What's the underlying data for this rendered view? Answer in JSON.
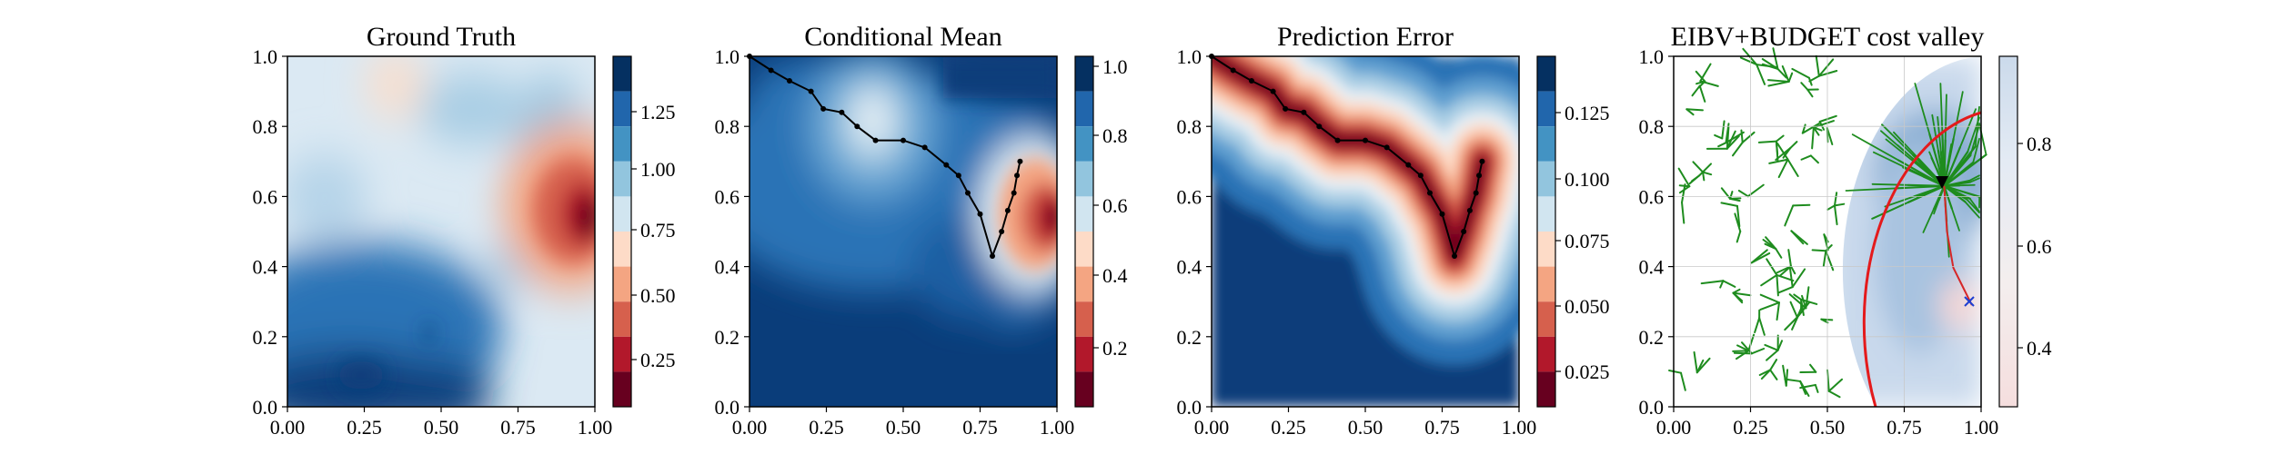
{
  "chart_data": [
    {
      "type": "heatmap",
      "title": "Ground Truth",
      "xlim": [
        0,
        1
      ],
      "ylim": [
        0,
        1
      ],
      "x_ticks": [
        "0.00",
        "0.25",
        "0.50",
        "0.75",
        "1.00"
      ],
      "y_ticks": [
        "0.0",
        "0.2",
        "0.4",
        "0.6",
        "0.8",
        "1.0"
      ],
      "colormap": "RdBu (reversed: red=low, blue=high)",
      "colorbar_range": [
        0.1,
        1.45
      ],
      "colorbar_ticks": [
        "0.25",
        "0.50",
        "0.75",
        "1.00",
        "1.25"
      ],
      "field_features": {
        "low_values_hotspot": {
          "x": 0.95,
          "y": 0.55,
          "value": 0.1
        },
        "mild_low_region": {
          "x": 0.35,
          "y": 0.9,
          "value": 0.7
        },
        "high_values_regions": [
          {
            "x": 0.2,
            "y": 0.05,
            "value": 1.4
          },
          {
            "x": 0.45,
            "y": 0.05,
            "value": 1.4
          }
        ]
      }
    },
    {
      "type": "heatmap",
      "title": "Conditional Mean",
      "xlim": [
        0,
        1
      ],
      "ylim": [
        0,
        1
      ],
      "x_ticks": [
        "0.00",
        "0.25",
        "0.50",
        "0.75",
        "1.00"
      ],
      "y_ticks": [
        "0.0",
        "0.2",
        "0.4",
        "0.6",
        "0.8",
        "1.0"
      ],
      "colormap": "RdBu (reversed)",
      "colorbar_range": [
        0.05,
        1.05
      ],
      "colorbar_ticks": [
        "0.2",
        "0.4",
        "0.6",
        "0.8",
        "1.0"
      ],
      "field_features": {
        "low_values_hotspot": {
          "x": 0.97,
          "y": 0.55,
          "value": 0.08
        },
        "light_blob": {
          "x": 0.4,
          "y": 0.82,
          "value": 0.6
        }
      },
      "path": {
        "x": [
          0.0,
          0.07,
          0.13,
          0.2,
          0.24,
          0.3,
          0.35,
          0.41,
          0.5,
          0.57,
          0.64,
          0.68,
          0.71,
          0.75,
          0.79,
          0.82,
          0.84,
          0.86,
          0.87,
          0.88
        ],
        "y": [
          1.0,
          0.96,
          0.93,
          0.9,
          0.85,
          0.84,
          0.8,
          0.76,
          0.76,
          0.74,
          0.69,
          0.66,
          0.61,
          0.55,
          0.43,
          0.5,
          0.56,
          0.61,
          0.66,
          0.7
        ]
      }
    },
    {
      "type": "heatmap",
      "title": "Prediction Error",
      "xlim": [
        0,
        1
      ],
      "ylim": [
        0,
        1
      ],
      "x_ticks": [
        "0.00",
        "0.25",
        "0.50",
        "0.75",
        "1.00"
      ],
      "y_ticks": [
        "0.0",
        "0.2",
        "0.4",
        "0.6",
        "0.8",
        "1.0"
      ],
      "colormap": "RdBu (reversed)",
      "colorbar_range": [
        0.012,
        0.148
      ],
      "colorbar_ticks": [
        "0.025",
        "0.050",
        "0.075",
        "0.100",
        "0.125"
      ],
      "note": "Error is lowest along the sampled path and increases away from it.",
      "path": {
        "x": [
          0.0,
          0.07,
          0.13,
          0.2,
          0.24,
          0.3,
          0.35,
          0.41,
          0.5,
          0.57,
          0.64,
          0.68,
          0.71,
          0.75,
          0.79,
          0.82,
          0.84,
          0.86,
          0.87,
          0.88
        ],
        "y": [
          1.0,
          0.96,
          0.93,
          0.9,
          0.85,
          0.84,
          0.8,
          0.76,
          0.76,
          0.74,
          0.69,
          0.66,
          0.61,
          0.55,
          0.43,
          0.5,
          0.56,
          0.61,
          0.66,
          0.7
        ]
      }
    },
    {
      "type": "heatmap",
      "title": "EIBV+BUDGET cost valley",
      "xlim": [
        0,
        1
      ],
      "ylim": [
        0,
        1
      ],
      "x_ticks": [
        "0.00",
        "0.25",
        "0.50",
        "0.75",
        "1.00"
      ],
      "y_ticks": [
        "0.0",
        "0.2",
        "0.4",
        "0.6",
        "0.8",
        "1.0"
      ],
      "colormap": "Blues-to-red (pale)",
      "colorbar_range": [
        0.28,
        0.98
      ],
      "colorbar_ticks": [
        "0.4",
        "0.6",
        "0.8"
      ],
      "current_location": {
        "x": 0.88,
        "y": 0.63,
        "marker": "black triangle"
      },
      "target_location": {
        "x": 0.97,
        "y": 0.29,
        "marker": "blue x"
      },
      "budget_boundary": {
        "center": {
          "x": 1.02,
          "y": 0.39
        },
        "radius": 0.47,
        "color": "#e41a1c"
      },
      "tree_color": "#1e8c1e"
    }
  ]
}
